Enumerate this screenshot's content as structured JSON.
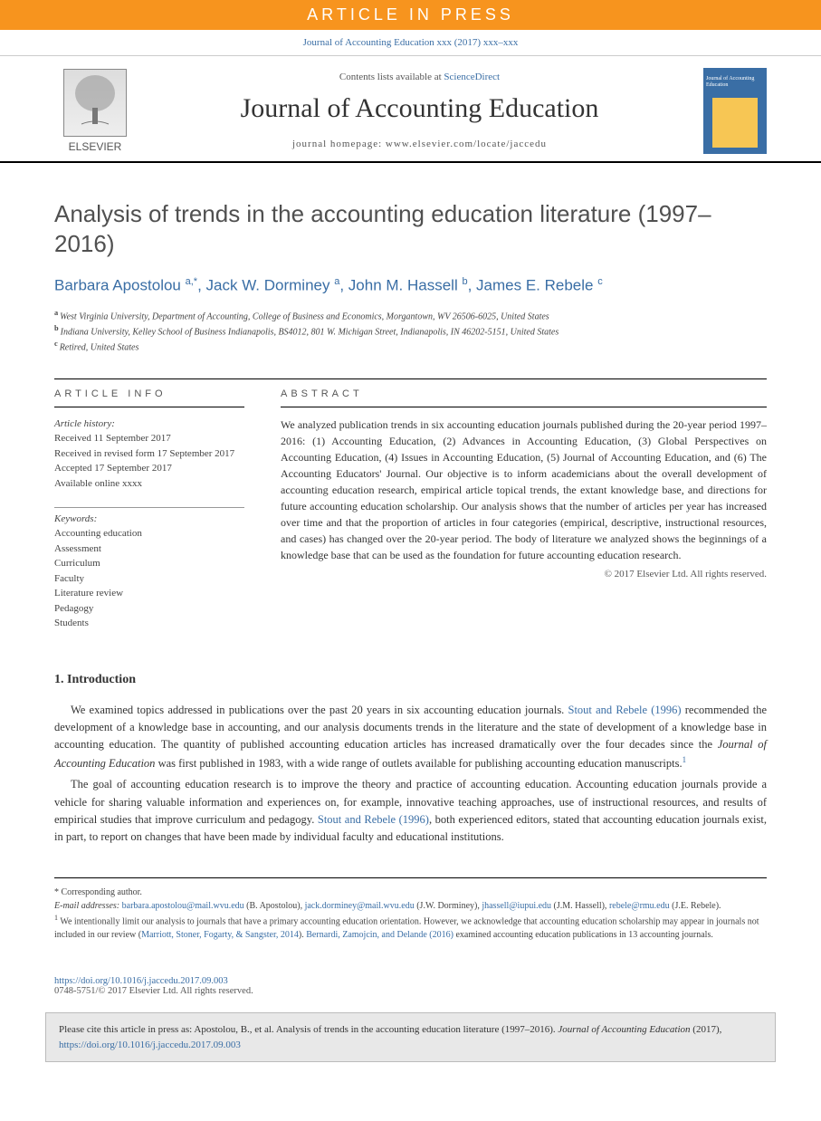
{
  "banner": "ARTICLE IN PRESS",
  "journal_ref": "Journal of Accounting Education xxx (2017) xxx–xxx",
  "header": {
    "contents_prefix": "Contents lists available at ",
    "contents_link": "ScienceDirect",
    "journal_title": "Journal of Accounting Education",
    "homepage_label": "journal homepage: ",
    "homepage_url": "www.elsevier.com/locate/jaccedu",
    "publisher": "ELSEVIER",
    "cover_text": "Journal of Accounting Education"
  },
  "title": "Analysis of trends in the accounting education literature (1997–2016)",
  "authors_html": "Barbara Apostolou <sup>a,*</sup>, Jack W. Dorminey <sup>a</sup>, John M. Hassell <sup>b</sup>, James E. Rebele <sup>c</sup>",
  "affiliations": [
    {
      "sup": "a",
      "text": "West Virginia University, Department of Accounting, College of Business and Economics, Morgantown, WV 26506-6025, United States"
    },
    {
      "sup": "b",
      "text": "Indiana University, Kelley School of Business Indianapolis, BS4012, 801 W. Michigan Street, Indianapolis, IN 46202-5151, United States"
    },
    {
      "sup": "c",
      "text": "Retired, United States"
    }
  ],
  "info_label": "ARTICLE INFO",
  "abstract_label": "ABSTRACT",
  "history": {
    "label": "Article history:",
    "received": "Received 11 September 2017",
    "revised": "Received in revised form 17 September 2017",
    "accepted": "Accepted 17 September 2017",
    "online": "Available online xxxx"
  },
  "keywords_label": "Keywords:",
  "keywords": [
    "Accounting education",
    "Assessment",
    "Curriculum",
    "Faculty",
    "Literature review",
    "Pedagogy",
    "Students"
  ],
  "abstract": "We analyzed publication trends in six accounting education journals published during the 20-year period 1997–2016: (1) Accounting Education, (2) Advances in Accounting Education, (3) Global Perspectives on Accounting Education, (4) Issues in Accounting Education, (5) Journal of Accounting Education, and (6) The Accounting Educators' Journal. Our objective is to inform academicians about the overall development of accounting education research, empirical article topical trends, the extant knowledge base, and directions for future accounting education scholarship. Our analysis shows that the number of articles per year has increased over time and that the proportion of articles in four categories (empirical, descriptive, instructional resources, and cases) has changed over the 20-year period. The body of literature we analyzed shows the beginnings of a knowledge base that can be used as the foundation for future accounting education research.",
  "abstract_copyright": "© 2017 Elsevier Ltd. All rights reserved.",
  "section1": {
    "heading": "1. Introduction",
    "p1_pre": "We examined topics addressed in publications over the past 20 years in six accounting education journals. ",
    "p1_cite": "Stout and Rebele (1996)",
    "p1_mid": " recommended the development of a knowledge base in accounting, and our analysis documents trends in the literature and the state of development of a knowledge base in accounting education. The quantity of published accounting education articles has increased dramatically over the four decades since the ",
    "p1_ital": "Journal of Accounting Education",
    "p1_post": " was first published in 1983, with a wide range of outlets available for publishing accounting education manuscripts.",
    "p1_fn": "1",
    "p2_pre": "The goal of accounting education research is to improve the theory and practice of accounting education. Accounting education journals provide a vehicle for sharing valuable information and experiences on, for example, innovative teaching approaches, use of instructional resources, and results of empirical studies that improve curriculum and pedagogy. ",
    "p2_cite": "Stout and Rebele (1996)",
    "p2_post": ", both experienced editors, stated that accounting education journals exist, in part, to report on changes that have been made by individual faculty and educational institutions."
  },
  "footnotes": {
    "corr": "* Corresponding author.",
    "email_label": "E-mail addresses: ",
    "emails": [
      {
        "addr": "barbara.apostolou@mail.wvu.edu",
        "who": "(B. Apostolou)"
      },
      {
        "addr": "jack.dorminey@mail.wvu.edu",
        "who": "(J.W. Dorminey)"
      },
      {
        "addr": "jhassell@iupui.edu",
        "who": "(J.M. Hassell)"
      },
      {
        "addr": "rebele@rmu.edu",
        "who": "(J.E. Rebele)."
      }
    ],
    "fn1_pre": "We intentionally limit our analysis to journals that have a primary accounting education orientation. However, we acknowledge that accounting education scholarship may appear in journals not included in our review (",
    "fn1_cite1": "Marriott, Stoner, Fogarty, & Sangster, 2014",
    "fn1_mid": "). ",
    "fn1_cite2": "Bernardi, Zamojcin, and Delande (2016)",
    "fn1_post": " examined accounting education publications in 13 accounting journals."
  },
  "doi": {
    "url": "https://doi.org/10.1016/j.jaccedu.2017.09.003",
    "issn": "0748-5751/",
    "copy": "© 2017 Elsevier Ltd. All rights reserved."
  },
  "citation": {
    "pre": "Please cite this article in press as: Apostolou, B., et al. Analysis of trends in the accounting education literature (1997–2016). ",
    "ital": "Journal of Accounting Education",
    "mid": " (2017), ",
    "link": "https://doi.org/10.1016/j.jaccedu.2017.09.003"
  },
  "colors": {
    "orange": "#f7941e",
    "link_blue": "#3a6ea5",
    "text": "#333333",
    "grey_bg": "#e8e8e8"
  }
}
